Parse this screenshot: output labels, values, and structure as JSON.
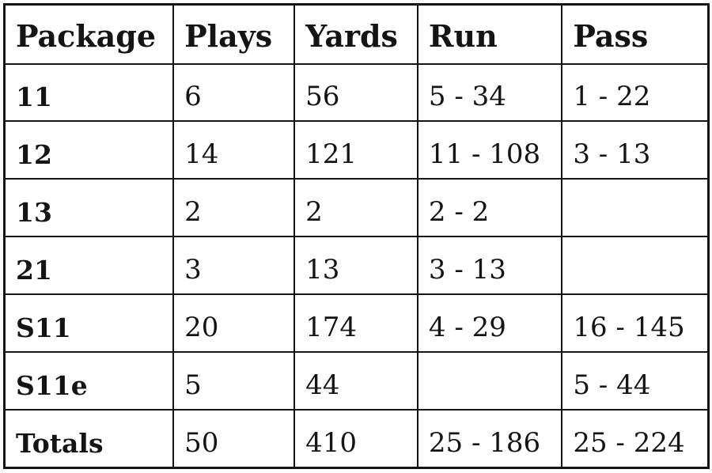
{
  "chart_data": {
    "type": "table",
    "columns": [
      "Package",
      "Plays",
      "Yards",
      "Run",
      "Pass"
    ],
    "rows": [
      {
        "package": "11",
        "plays": "6",
        "yards": "56",
        "run": "5 - 34",
        "pass": "1 - 22"
      },
      {
        "package": "12",
        "plays": "14",
        "yards": "121",
        "run": "11 - 108",
        "pass": "3 - 13"
      },
      {
        "package": "13",
        "plays": "2",
        "yards": "2",
        "run": "2 - 2",
        "pass": ""
      },
      {
        "package": "21",
        "plays": "3",
        "yards": "13",
        "run": "3 - 13",
        "pass": ""
      },
      {
        "package": "S11",
        "plays": "20",
        "yards": "174",
        "run": "4 - 29",
        "pass": "16 - 145"
      },
      {
        "package": "S11e",
        "plays": "5",
        "yards": "44",
        "run": "",
        "pass": "5 - 44"
      },
      {
        "package": "Totals",
        "plays": "50",
        "yards": "410",
        "run": "25 - 186",
        "pass": "25 - 224"
      }
    ]
  },
  "colors": {
    "border": "#141414",
    "text": "#141414",
    "background": "#ffffff"
  }
}
